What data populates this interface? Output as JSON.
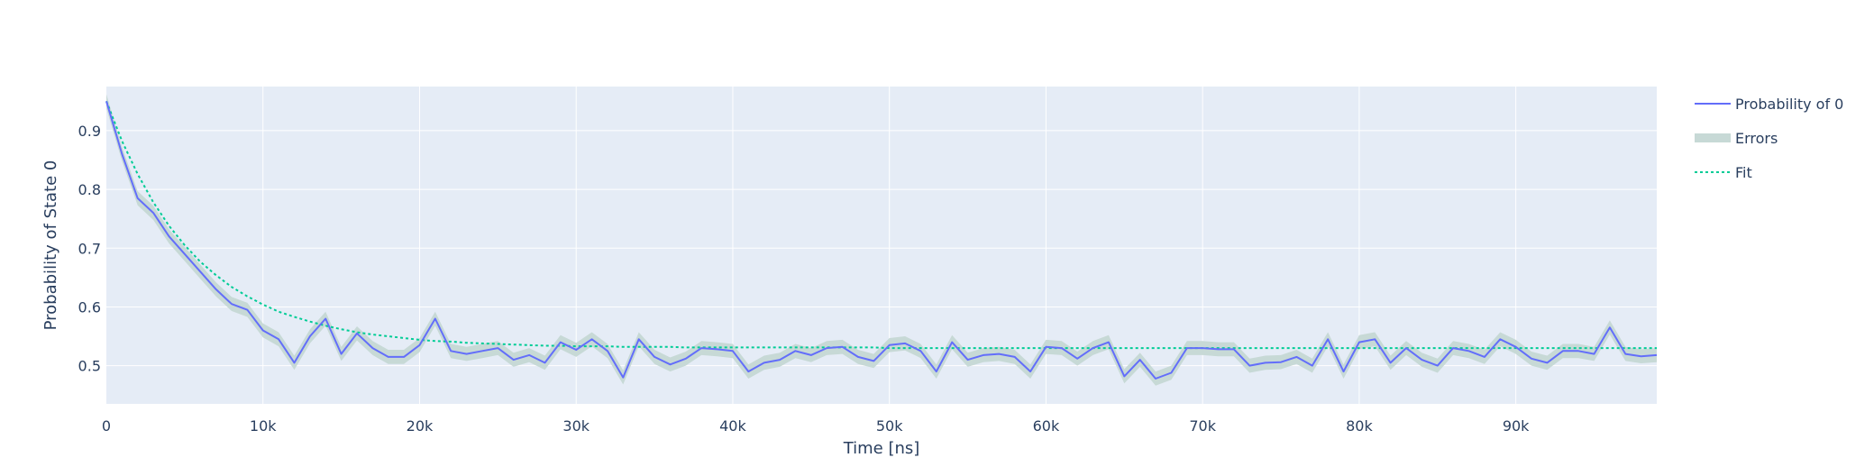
{
  "chart_data": {
    "type": "line",
    "title": "",
    "xlabel": "Time [ns]",
    "ylabel": "Probability of State 0",
    "xlim": [
      0,
      99000
    ],
    "ylim": [
      0.435,
      0.975
    ],
    "x_ticks": [
      0,
      10000,
      20000,
      30000,
      40000,
      50000,
      60000,
      70000,
      80000,
      90000
    ],
    "x_tick_labels": [
      "0",
      "10k",
      "20k",
      "30k",
      "40k",
      "50k",
      "60k",
      "70k",
      "80k",
      "90k"
    ],
    "y_ticks": [
      0.5,
      0.6,
      0.7,
      0.8,
      0.9
    ],
    "y_tick_labels": [
      "0.5",
      "0.6",
      "0.7",
      "0.8",
      "0.9"
    ],
    "grid": true,
    "legend_position": "top-right",
    "background_color": "#e5ecf6",
    "x": [
      0,
      1000,
      2000,
      3000,
      4000,
      5000,
      6000,
      7000,
      8000,
      9000,
      10000,
      11000,
      12000,
      13000,
      14000,
      15000,
      16000,
      17000,
      18000,
      19000,
      20000,
      21000,
      22000,
      23000,
      24000,
      25000,
      26000,
      27000,
      28000,
      29000,
      30000,
      31000,
      32000,
      33000,
      34000,
      35000,
      36000,
      37000,
      38000,
      39000,
      40000,
      41000,
      42000,
      43000,
      44000,
      45000,
      46000,
      47000,
      48000,
      49000,
      50000,
      51000,
      52000,
      53000,
      54000,
      55000,
      56000,
      57000,
      58000,
      59000,
      60000,
      61000,
      62000,
      63000,
      64000,
      65000,
      66000,
      67000,
      68000,
      69000,
      70000,
      71000,
      72000,
      73000,
      74000,
      75000,
      76000,
      77000,
      78000,
      79000,
      80000,
      81000,
      82000,
      83000,
      84000,
      85000,
      86000,
      87000,
      88000,
      89000,
      90000,
      91000,
      92000,
      93000,
      94000,
      95000,
      96000,
      97000,
      98000,
      99000
    ],
    "series": [
      {
        "name": "Probability of 0",
        "color": "#636efa",
        "values": [
          0.95,
          0.86,
          0.785,
          0.76,
          0.72,
          0.69,
          0.66,
          0.63,
          0.605,
          0.595,
          0.56,
          0.545,
          0.505,
          0.55,
          0.58,
          0.52,
          0.555,
          0.53,
          0.515,
          0.515,
          0.535,
          0.58,
          0.525,
          0.52,
          0.525,
          0.53,
          0.51,
          0.518,
          0.505,
          0.54,
          0.527,
          0.545,
          0.525,
          0.48,
          0.545,
          0.515,
          0.502,
          0.512,
          0.53,
          0.528,
          0.525,
          0.49,
          0.505,
          0.51,
          0.525,
          0.518,
          0.53,
          0.532,
          0.515,
          0.508,
          0.535,
          0.538,
          0.525,
          0.49,
          0.54,
          0.51,
          0.518,
          0.52,
          0.515,
          0.49,
          0.532,
          0.53,
          0.512,
          0.53,
          0.54,
          0.482,
          0.51,
          0.478,
          0.488,
          0.53,
          0.53,
          0.528,
          0.528,
          0.5,
          0.505,
          0.506,
          0.515,
          0.5,
          0.545,
          0.49,
          0.54,
          0.545,
          0.505,
          0.53,
          0.51,
          0.5,
          0.53,
          0.525,
          0.515,
          0.545,
          0.532,
          0.512,
          0.505,
          0.525,
          0.525,
          0.52,
          0.565,
          0.52,
          0.516,
          0.518
        ]
      },
      {
        "name": "Errors",
        "type": "band",
        "color": "#c7d9d6",
        "halfwidth": 0.012
      },
      {
        "name": "Fit",
        "color": "#00cc96",
        "dash": "dot",
        "values": [
          0.95,
          0.882,
          0.826,
          0.778,
          0.738,
          0.705,
          0.677,
          0.654,
          0.634,
          0.618,
          0.604,
          0.592,
          0.583,
          0.575,
          0.568,
          0.562,
          0.557,
          0.553,
          0.55,
          0.547,
          0.544,
          0.542,
          0.541,
          0.539,
          0.538,
          0.537,
          0.536,
          0.535,
          0.534,
          0.534,
          0.533,
          0.533,
          0.533,
          0.532,
          0.532,
          0.532,
          0.532,
          0.531,
          0.531,
          0.531,
          0.531,
          0.531,
          0.531,
          0.531,
          0.531,
          0.531,
          0.531,
          0.531,
          0.531,
          0.531,
          0.53,
          0.53,
          0.53,
          0.53,
          0.53,
          0.53,
          0.53,
          0.53,
          0.53,
          0.53,
          0.53,
          0.53,
          0.53,
          0.53,
          0.53,
          0.53,
          0.53,
          0.53,
          0.53,
          0.53,
          0.53,
          0.53,
          0.53,
          0.53,
          0.53,
          0.53,
          0.53,
          0.53,
          0.53,
          0.53,
          0.53,
          0.53,
          0.53,
          0.53,
          0.53,
          0.53,
          0.53,
          0.53,
          0.53,
          0.53,
          0.53,
          0.53,
          0.53,
          0.53,
          0.53,
          0.53,
          0.53,
          0.53,
          0.53,
          0.53
        ]
      }
    ]
  }
}
